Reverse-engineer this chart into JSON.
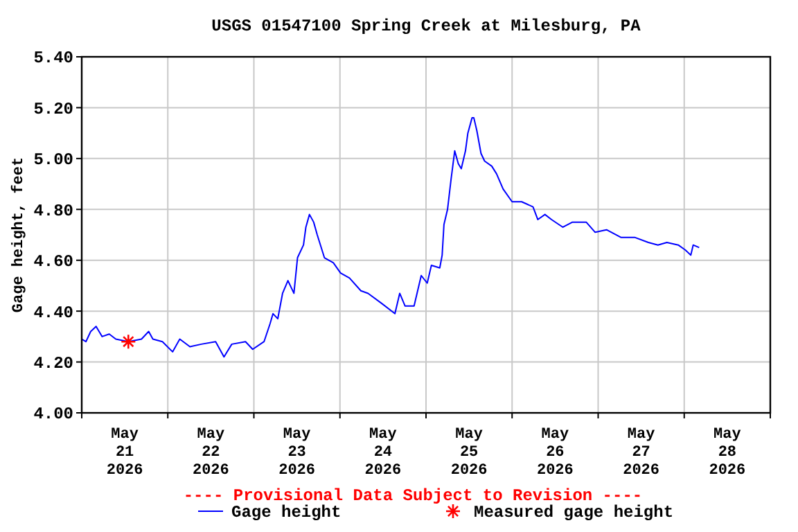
{
  "chart_data": {
    "type": "line",
    "title": "USGS 01547100 Spring Creek at Milesburg, PA",
    "ylabel": "Gage height, feet",
    "annotations": [
      "---- Provisional Data Subject to Revision ----"
    ],
    "xlim": [
      "2026-05-21T00:00",
      "2026-05-29T00:00"
    ],
    "xticks": [
      {
        "value": "2026-05-21T00:00",
        "label": null
      },
      {
        "value": "2026-05-21T12:00",
        "label": "May\n21\n2026"
      },
      {
        "value": "2026-05-22T00:00",
        "label": null
      },
      {
        "value": "2026-05-22T12:00",
        "label": "May\n22\n2026"
      },
      {
        "value": "2026-05-23T00:00",
        "label": null
      },
      {
        "value": "2026-05-23T12:00",
        "label": "May\n23\n2026"
      },
      {
        "value": "2026-05-24T00:00",
        "label": null
      },
      {
        "value": "2026-05-24T12:00",
        "label": "May\n24\n2026"
      },
      {
        "value": "2026-05-25T00:00",
        "label": null
      },
      {
        "value": "2026-05-25T12:00",
        "label": "May\n25\n2026"
      },
      {
        "value": "2026-05-26T00:00",
        "label": null
      },
      {
        "value": "2026-05-26T12:00",
        "label": "May\n26\n2026"
      },
      {
        "value": "2026-05-27T00:00",
        "label": null
      },
      {
        "value": "2026-05-27T12:00",
        "label": "May\n27\n2026"
      },
      {
        "value": "2026-05-28T00:00",
        "label": null
      },
      {
        "value": "2026-05-28T12:00",
        "label": "May\n28\n2026"
      },
      {
        "value": "2026-05-29T00:00",
        "label": null
      }
    ],
    "ylim": [
      4.0,
      5.4
    ],
    "yticks": [
      {
        "value": 4.0,
        "label": "4.00"
      },
      {
        "value": 4.2,
        "label": "4.20"
      },
      {
        "value": 4.4,
        "label": "4.40"
      },
      {
        "value": 4.6,
        "label": "4.60"
      },
      {
        "value": 4.8,
        "label": "4.80"
      },
      {
        "value": 5.0,
        "label": "5.00"
      },
      {
        "value": 5.2,
        "label": "5.20"
      },
      {
        "value": 5.4,
        "label": "5.40"
      }
    ],
    "grid": true,
    "legend": "bottom",
    "line_style": "solid",
    "marker": "none",
    "series": [
      {
        "name": "Gage height",
        "color": "#0000ff",
        "x": [
          "2026-05-21T00:00",
          "2026-05-21T01:10",
          "2026-05-21T02:30",
          "2026-05-21T04:00",
          "2026-05-21T05:40",
          "2026-05-21T07:40",
          "2026-05-21T09:30",
          "2026-05-21T13:00",
          "2026-05-21T16:40",
          "2026-05-21T18:40",
          "2026-05-21T19:50",
          "2026-05-21T22:30",
          "2026-05-22T01:20",
          "2026-05-22T03:20",
          "2026-05-22T06:10",
          "2026-05-22T09:20",
          "2026-05-22T13:20",
          "2026-05-22T15:40",
          "2026-05-22T17:50",
          "2026-05-22T21:40",
          "2026-05-22T23:40",
          "2026-05-23T02:50",
          "2026-05-23T04:30",
          "2026-05-23T05:20",
          "2026-05-23T06:40",
          "2026-05-23T08:00",
          "2026-05-23T09:30",
          "2026-05-23T11:10",
          "2026-05-23T12:10",
          "2026-05-23T13:50",
          "2026-05-23T14:30",
          "2026-05-23T15:30",
          "2026-05-23T16:40",
          "2026-05-23T17:40",
          "2026-05-23T19:40",
          "2026-05-23T22:10",
          "2026-05-24T00:10",
          "2026-05-24T02:40",
          "2026-05-24T05:50",
          "2026-05-24T07:50",
          "2026-05-24T11:40",
          "2026-05-24T15:20",
          "2026-05-24T16:40",
          "2026-05-24T18:10",
          "2026-05-24T20:40",
          "2026-05-24T22:40",
          "2026-05-25T00:20",
          "2026-05-25T01:30",
          "2026-05-25T03:50",
          "2026-05-25T04:30",
          "2026-05-25T05:00",
          "2026-05-25T06:00",
          "2026-05-25T07:00",
          "2026-05-25T08:00",
          "2026-05-25T09:00",
          "2026-05-25T09:50",
          "2026-05-25T11:00",
          "2026-05-25T11:40",
          "2026-05-25T12:50",
          "2026-05-25T13:20",
          "2026-05-25T14:10",
          "2026-05-25T15:20",
          "2026-05-25T16:20",
          "2026-05-25T18:20",
          "2026-05-25T19:40",
          "2026-05-25T21:30",
          "2026-05-26T00:00",
          "2026-05-26T02:40",
          "2026-05-26T05:50",
          "2026-05-26T07:10",
          "2026-05-26T09:10",
          "2026-05-26T11:00",
          "2026-05-26T14:10",
          "2026-05-26T16:50",
          "2026-05-26T20:40",
          "2026-05-26T23:10",
          "2026-05-27T02:20",
          "2026-05-27T06:20",
          "2026-05-27T10:10",
          "2026-05-27T14:00",
          "2026-05-27T16:40",
          "2026-05-27T19:10",
          "2026-05-27T22:20",
          "2026-05-28T00:20",
          "2026-05-28T01:50",
          "2026-05-28T02:30",
          "2026-05-28T04:10"
        ],
        "values": [
          4.29,
          4.28,
          4.32,
          4.34,
          4.3,
          4.31,
          4.29,
          4.28,
          4.29,
          4.32,
          4.29,
          4.28,
          4.24,
          4.29,
          4.26,
          4.27,
          4.28,
          4.22,
          4.27,
          4.28,
          4.25,
          4.28,
          4.35,
          4.39,
          4.37,
          4.47,
          4.52,
          4.47,
          4.61,
          4.66,
          4.73,
          4.78,
          4.75,
          4.7,
          4.61,
          4.59,
          4.55,
          4.53,
          4.48,
          4.47,
          4.43,
          4.39,
          4.47,
          4.42,
          4.42,
          4.54,
          4.51,
          4.58,
          4.57,
          4.62,
          4.74,
          4.8,
          4.92,
          5.03,
          4.98,
          4.96,
          5.03,
          5.1,
          5.16,
          5.16,
          5.11,
          5.02,
          4.99,
          4.97,
          4.94,
          4.88,
          4.83,
          4.83,
          4.81,
          4.76,
          4.78,
          4.76,
          4.73,
          4.75,
          4.75,
          4.71,
          4.72,
          4.69,
          4.69,
          4.67,
          4.66,
          4.67,
          4.66,
          4.64,
          4.62,
          4.66,
          4.65
        ]
      },
      {
        "name": "Measured gage height",
        "type": "scatter",
        "marker": "cross",
        "color": "#ff0000",
        "x": [
          "2026-05-21T13:00"
        ],
        "values": [
          4.28
        ]
      }
    ]
  }
}
